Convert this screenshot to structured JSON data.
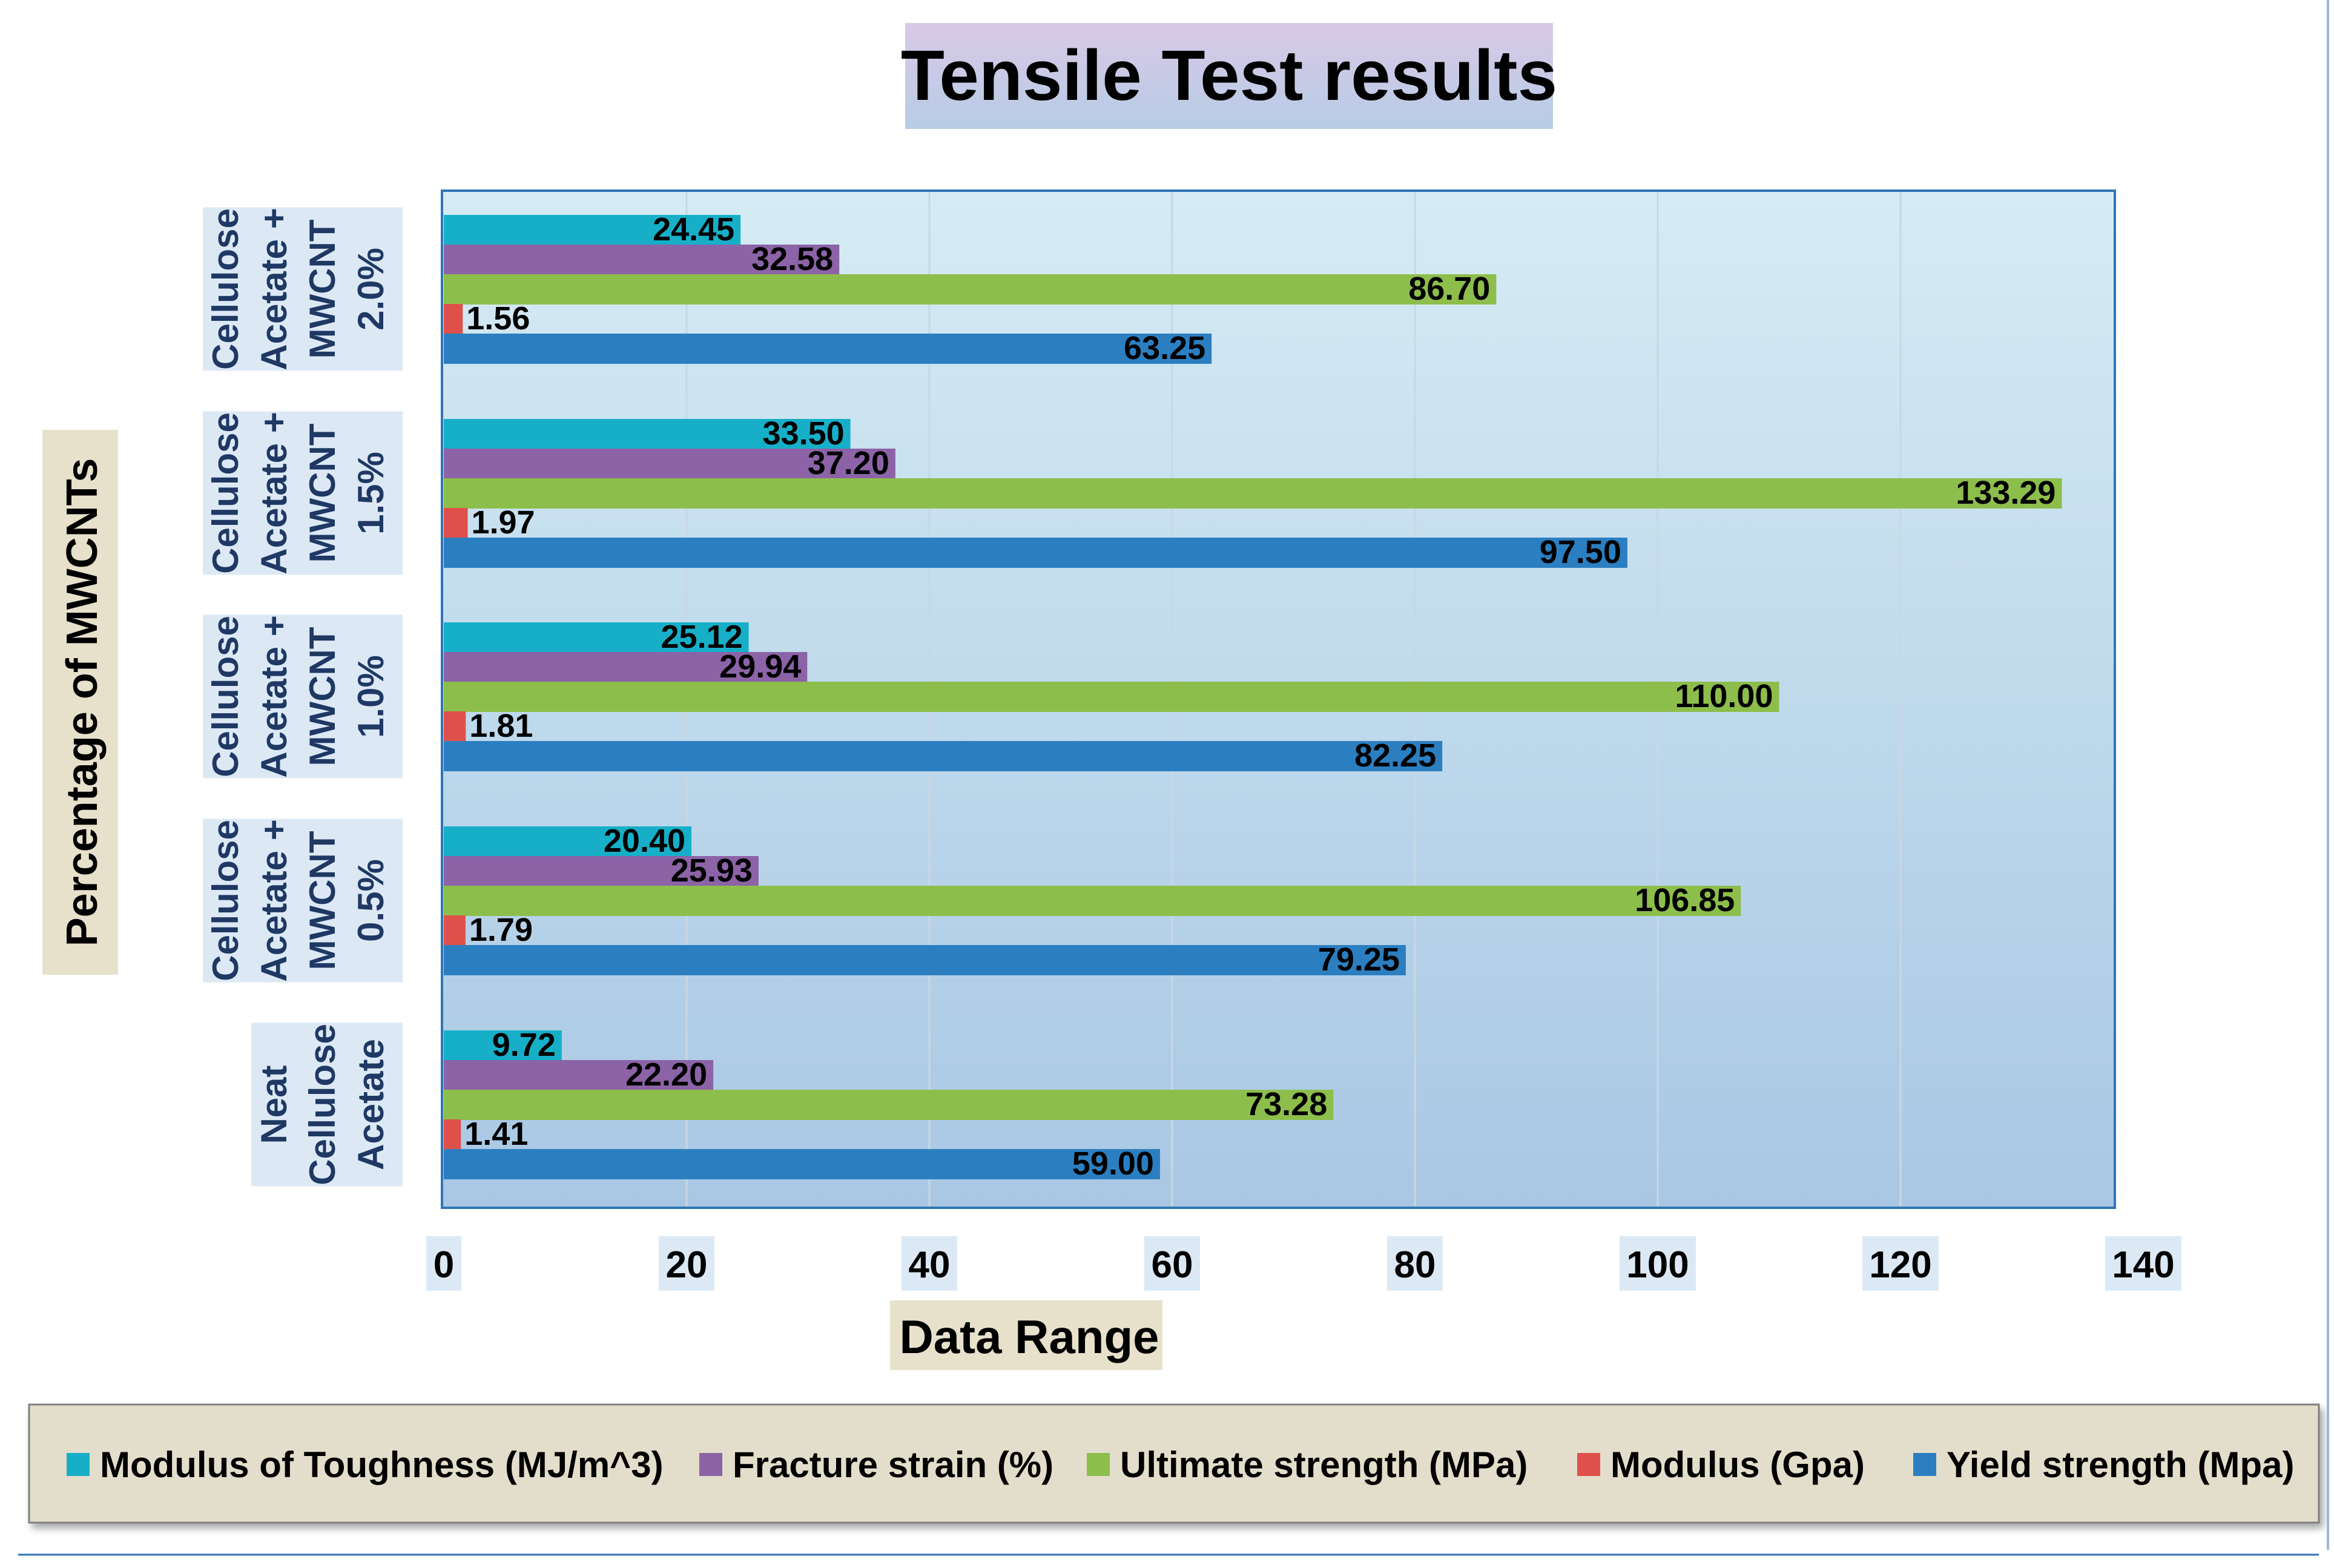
{
  "chart_data": {
    "type": "bar",
    "orientation": "horizontal",
    "title": "Tensile Test results",
    "xlabel": "Data Range",
    "ylabel": "Percentage of MWCNTs",
    "xlim": [
      0,
      140
    ],
    "xticks": [
      "0",
      "20",
      "40",
      "60",
      "80",
      "100",
      "120",
      "140"
    ],
    "grid": true,
    "legend_position": "bottom",
    "categories": [
      [
        "Cellulose",
        "Acetate +",
        "MWCNT",
        "2.0%"
      ],
      [
        "Cellulose",
        "Acetate +",
        "MWCNT",
        "1.5%"
      ],
      [
        "Cellulose",
        "Acetate +",
        "MWCNT",
        "1.0%"
      ],
      [
        "Cellulose",
        "Acetate +",
        "MWCNT",
        "0.5%"
      ],
      [
        "Neat",
        "Cellulose",
        "Acetate"
      ]
    ],
    "series": [
      {
        "name": "Modulus of Toughness (MJ/m^3)",
        "color": "#17AFC8",
        "values": [
          24.45,
          33.5,
          25.12,
          20.4,
          9.72
        ],
        "labels": [
          "24.45",
          "33.50",
          "25.12",
          "20.40",
          "9.72"
        ]
      },
      {
        "name": "Fracture strain (%)",
        "color": "#8B63A6",
        "values": [
          32.58,
          37.2,
          29.94,
          25.93,
          22.2
        ],
        "labels": [
          "32.58",
          "37.20",
          "29.94",
          "25.93",
          "22.20"
        ]
      },
      {
        "name": "Ultimate strength (MPa)",
        "color": "#8DBE4B",
        "values": [
          86.7,
          133.29,
          110.0,
          106.85,
          73.28
        ],
        "labels": [
          "86.70",
          "133.29",
          "110.00",
          "106.85",
          "73.28"
        ]
      },
      {
        "name": "Modulus (Gpa)",
        "color": "#E0504A",
        "values": [
          1.56,
          1.97,
          1.81,
          1.79,
          1.41
        ],
        "labels": [
          "1.56",
          "1.97",
          "1.81",
          "1.79",
          "1.41"
        ]
      },
      {
        "name": "Yield strength (Mpa)",
        "color": "#2B7FC1",
        "values": [
          63.25,
          97.5,
          82.25,
          79.25,
          59.0
        ],
        "labels": [
          "63.25",
          "97.50",
          "82.25",
          "79.25",
          "59.00"
        ]
      }
    ],
    "legend_order": [
      0,
      1,
      2,
      3,
      4
    ],
    "colors": {
      "title_box_top": "#D9C9E6",
      "title_box_bottom": "#B7CCE6",
      "plot_top": "#D6ECF4",
      "plot_bottom": "#A9C7E4",
      "plot_border": "#2E75B6",
      "label_box": "#DCE9F5",
      "tan_box": "#E7E0CB",
      "legend_bg": "#E3DECB",
      "legend_border": "#7F7F7F"
    }
  }
}
